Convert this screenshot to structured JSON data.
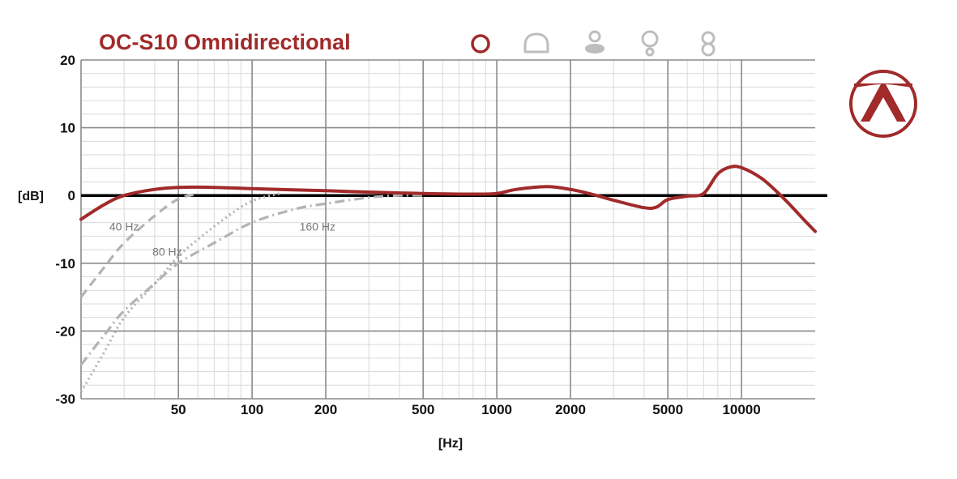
{
  "title": "OC-S10 Omnidirectional",
  "colors": {
    "accent": "#a12a2a",
    "cutoff_curves": "#b3b3b3",
    "grid_major": "#8a8a8a",
    "grid_minor": "#d9d9d9",
    "zero_line": "#000000",
    "pattern_icons_inactive": "#bdbdbd"
  },
  "pattern_icons": [
    {
      "name": "omnidirectional-icon",
      "active": true
    },
    {
      "name": "wide-cardioid-icon",
      "active": false
    },
    {
      "name": "cardioid-icon",
      "active": false
    },
    {
      "name": "hypercardioid-icon",
      "active": false
    },
    {
      "name": "figure-8-icon",
      "active": false
    }
  ],
  "logo": {
    "name": "brand-logo-icon"
  },
  "chart_data": {
    "type": "line",
    "title": "OC-S10 Omnidirectional",
    "xlabel": "[Hz]",
    "ylabel": "[dB]",
    "x_scale": "log",
    "xlim": [
      20,
      20000
    ],
    "ylim": [
      -30,
      20
    ],
    "x_ticks": [
      50,
      100,
      200,
      500,
      1000,
      2000,
      5000,
      10000
    ],
    "y_ticks": [
      20,
      10,
      0,
      -10,
      -20,
      -30
    ],
    "grid": true,
    "reference_line_y": 0,
    "series": [
      {
        "style": "solid",
        "color": "#a12a2a",
        "points": [
          [
            20,
            -3.5
          ],
          [
            25,
            -1.3
          ],
          [
            30,
            0
          ],
          [
            40,
            0.9
          ],
          [
            50,
            1.2
          ],
          [
            70,
            1.2
          ],
          [
            100,
            1.0
          ],
          [
            200,
            0.7
          ],
          [
            300,
            0.5
          ],
          [
            500,
            0.3
          ],
          [
            800,
            0.2
          ],
          [
            1000,
            0.3
          ],
          [
            1200,
            0.9
          ],
          [
            1600,
            1.3
          ],
          [
            2000,
            0.9
          ],
          [
            2500,
            0.1
          ],
          [
            3000,
            -0.7
          ],
          [
            4000,
            -1.8
          ],
          [
            4500,
            -1.7
          ],
          [
            5000,
            -0.6
          ],
          [
            6000,
            -0.1
          ],
          [
            7000,
            0.3
          ],
          [
            8000,
            3.2
          ],
          [
            9000,
            4.2
          ],
          [
            10000,
            4.1
          ],
          [
            12000,
            2.6
          ],
          [
            14000,
            0.5
          ],
          [
            16000,
            -1.6
          ],
          [
            18000,
            -3.6
          ],
          [
            20000,
            -5.3
          ]
        ]
      },
      {
        "name": "40 Hz",
        "style": "dashed",
        "color": "#b3b3b3",
        "points": [
          [
            20,
            -15
          ],
          [
            25,
            -10.5
          ],
          [
            30,
            -7
          ],
          [
            40,
            -3
          ],
          [
            50,
            -0.5
          ],
          [
            60,
            0.2
          ]
        ]
      },
      {
        "name": "80 Hz",
        "style": "dotted",
        "color": "#b3b3b3",
        "points": [
          [
            20,
            -29
          ],
          [
            25,
            -23
          ],
          [
            30,
            -18
          ],
          [
            40,
            -13
          ],
          [
            50,
            -9
          ],
          [
            60,
            -6.5
          ],
          [
            80,
            -3
          ],
          [
            100,
            -0.8
          ],
          [
            130,
            0.3
          ]
        ]
      },
      {
        "name": "160 Hz",
        "style": "dashdot",
        "color": "#b3b3b3",
        "points": [
          [
            20,
            -25
          ],
          [
            25,
            -20.5
          ],
          [
            30,
            -17
          ],
          [
            40,
            -13
          ],
          [
            50,
            -10
          ],
          [
            70,
            -7
          ],
          [
            100,
            -4
          ],
          [
            150,
            -2
          ],
          [
            200,
            -1.2
          ],
          [
            300,
            -0.3
          ],
          [
            400,
            0
          ],
          [
            500,
            0
          ]
        ]
      }
    ],
    "annotations": [
      {
        "text": "40 Hz",
        "x": 30,
        "y": -5.2
      },
      {
        "text": "80 Hz",
        "x": 45,
        "y": -8.9
      },
      {
        "text": "160 Hz",
        "x": 185,
        "y": -5.2
      }
    ]
  }
}
